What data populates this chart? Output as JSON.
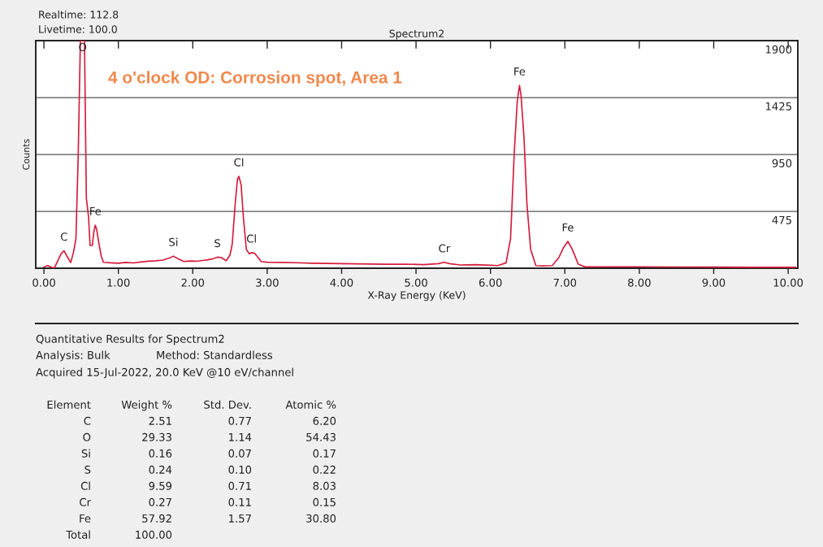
{
  "chart_data": [
    {
      "type": "line",
      "title": "Spectrum2",
      "xlabel": "X-Ray Energy (KeV)",
      "ylabel": "Counts",
      "x": [
        0.0,
        0.05,
        0.1,
        0.14,
        0.19,
        0.23,
        0.27,
        0.31,
        0.36,
        0.4,
        0.43,
        0.46,
        0.49,
        0.52,
        0.545,
        0.56,
        0.57,
        0.6,
        0.62,
        0.65,
        0.67,
        0.69,
        0.71,
        0.74,
        0.77,
        0.8,
        0.9,
        1.0,
        1.1,
        1.2,
        1.3,
        1.4,
        1.5,
        1.6,
        1.7,
        1.74,
        1.8,
        1.88,
        1.95,
        2.05,
        2.15,
        2.25,
        2.33,
        2.38,
        2.45,
        2.5,
        2.53,
        2.57,
        2.6,
        2.62,
        2.65,
        2.68,
        2.72,
        2.76,
        2.79,
        2.83,
        2.87,
        2.92,
        3.0,
        3.2,
        3.4,
        3.6,
        3.8,
        4.0,
        4.2,
        4.4,
        4.6,
        4.87,
        5.1,
        5.3,
        5.38,
        5.45,
        5.59,
        5.8,
        6.0,
        6.1,
        6.21,
        6.27,
        6.32,
        6.36,
        6.39,
        6.41,
        6.45,
        6.49,
        6.54,
        6.61,
        6.7,
        6.83,
        6.92,
        6.98,
        7.04,
        7.1,
        7.18,
        7.27,
        7.5,
        8.0,
        8.5,
        9.0,
        9.5,
        10.0,
        10.1
      ],
      "series": [
        {
          "color": "#d41c3c",
          "values": [
            10,
            22,
            8,
            2,
            67,
            120,
            146,
            100,
            47,
            140,
            249,
            930,
            1900,
            1900,
            1900,
            1100,
            585,
            426,
            190,
            190,
            300,
            359,
            320,
            202,
            100,
            49,
            45,
            42,
            48,
            44,
            52,
            58,
            62,
            68,
            88,
            101,
            80,
            56,
            60,
            58,
            66,
            75,
            92,
            90,
            63,
            110,
            200,
            538,
            740,
            767,
            695,
            426,
            157,
            120,
            130,
            125,
            95,
            56,
            50,
            48,
            46,
            42,
            40,
            38,
            36,
            35,
            33,
            34,
            30,
            38,
            49,
            38,
            27,
            30,
            25,
            22,
            45,
            247,
            965,
            1391,
            1526,
            1447,
            1099,
            538,
            157,
            22,
            20,
            22,
            90,
            170,
            224,
            157,
            34,
            11,
            12,
            12,
            10,
            9,
            8,
            8,
            8
          ]
        }
      ],
      "xlim": [
        -0.11,
        10.13
      ],
      "ylim": [
        0,
        1900
      ],
      "xticks": [
        {
          "value": 0,
          "label": "0.00"
        },
        {
          "value": 1,
          "label": "1.00"
        },
        {
          "value": 2,
          "label": "2.00"
        },
        {
          "value": 3,
          "label": "3.00"
        },
        {
          "value": 4,
          "label": "4.00"
        },
        {
          "value": 5,
          "label": "5.00"
        },
        {
          "value": 6,
          "label": "6.00"
        },
        {
          "value": 7,
          "label": "7.00"
        },
        {
          "value": 8,
          "label": "8.00"
        },
        {
          "value": 9,
          "label": "9.00"
        },
        {
          "value": 10,
          "label": "10.00"
        }
      ],
      "yticks": [
        475,
        950,
        1425,
        1900
      ],
      "grid": "y",
      "line_style": "solid",
      "annotations": [
        "Realtime: 112.8",
        "Livetime: 100.0",
        "4 o'clock OD: Corrosion spot, Area 1",
        {
          "text": "C",
          "x": 0.27,
          "y": 146
        },
        {
          "text": "O",
          "x": 0.52,
          "y": 1900
        },
        {
          "text": "Fe",
          "x": 0.69,
          "y": 359
        },
        {
          "text": "Si",
          "x": 1.74,
          "y": 101
        },
        {
          "text": "S",
          "x": 2.33,
          "y": 92
        },
        {
          "text": "Cl",
          "x": 2.62,
          "y": 767
        },
        {
          "text": "Cl",
          "x": 2.79,
          "y": 130
        },
        {
          "text": "Cr",
          "x": 5.38,
          "y": 49
        },
        {
          "text": "Fe",
          "x": 6.39,
          "y": 1526
        },
        {
          "text": "Fe",
          "x": 7.04,
          "y": 224
        }
      ]
    },
    {
      "type": "other",
      "title": "Quantitative Results for Spectrum2",
      "annotations": [
        "Analysis: Bulk",
        "Method: Standardless",
        "Acquired 15-Jul-2022, 20.0 KeV @10 eV/channel",
        "Element",
        "Weight %",
        "Std. Dev.",
        "Atomic %",
        "C",
        "2.51",
        "0.77",
        "6.20",
        "O",
        "29.33",
        "1.14",
        "54.43",
        "Si",
        "0.16",
        "0.07",
        "0.17",
        "S",
        "0.24",
        "0.10",
        "0.22",
        "Cl",
        "9.59",
        "0.71",
        "8.03",
        "Cr",
        "0.27",
        "0.11",
        "0.15",
        "Fe",
        "57.92",
        "1.57",
        "30.80",
        "Total",
        "100.00"
      ]
    }
  ]
}
